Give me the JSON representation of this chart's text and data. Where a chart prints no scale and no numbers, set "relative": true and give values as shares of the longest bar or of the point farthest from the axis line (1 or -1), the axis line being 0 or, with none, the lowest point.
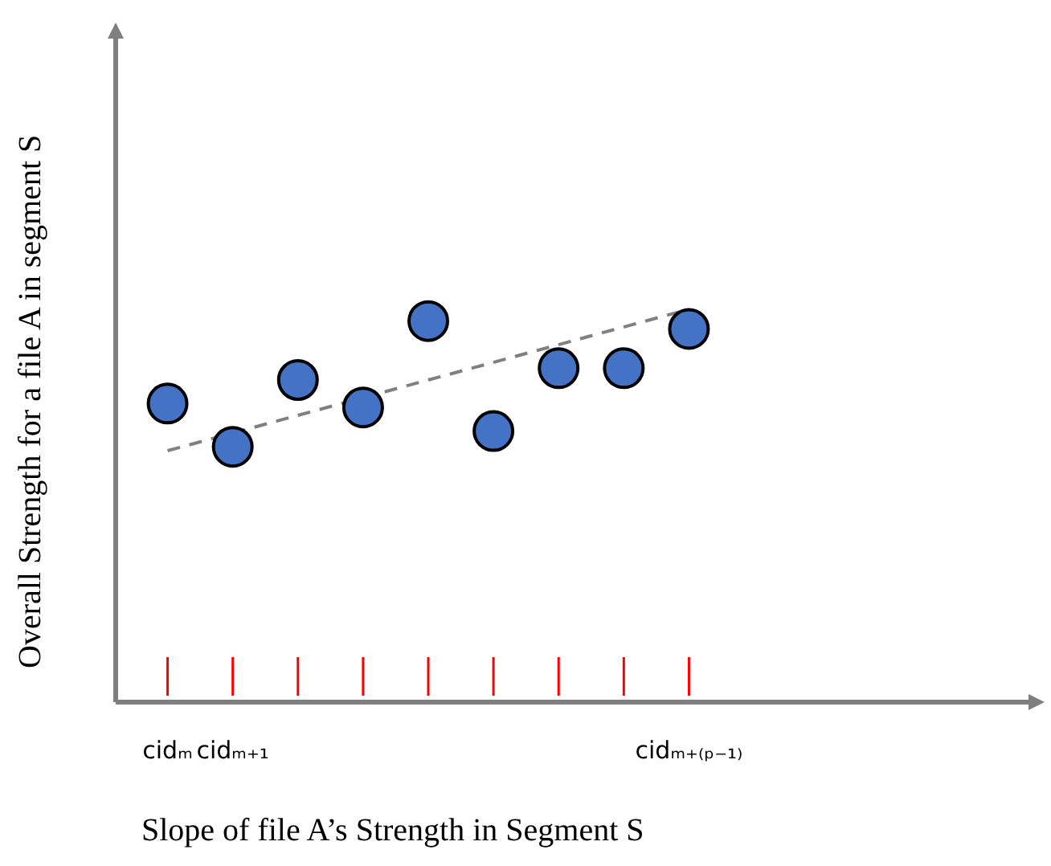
{
  "chart_data": {
    "type": "scatter",
    "xlabel": "Slope of file A’s Strength in Segment S",
    "ylabel": "Overall Strength for a file A in segment S",
    "categories": [
      "cidₘ",
      "cidₘ₊₁",
      null,
      null,
      null,
      null,
      null,
      null,
      "cidₘ₊₍ₚ₋₁₎"
    ],
    "relative": true,
    "grid": false,
    "legend": false,
    "marker": "circle",
    "series": [
      {
        "type": "scatter",
        "color": "#4472c4",
        "values": [
          0.76,
          0.65,
          0.82,
          0.75,
          0.97,
          0.69,
          0.85,
          0.85,
          0.95
        ]
      },
      {
        "type": "line",
        "color": "#808080",
        "line_style": "dashed",
        "marker": "none",
        "x": [
          "cidₘ",
          "cidₘ₊₍ₚ₋₁₎"
        ],
        "values": [
          0.64,
          1
        ]
      }
    ]
  }
}
